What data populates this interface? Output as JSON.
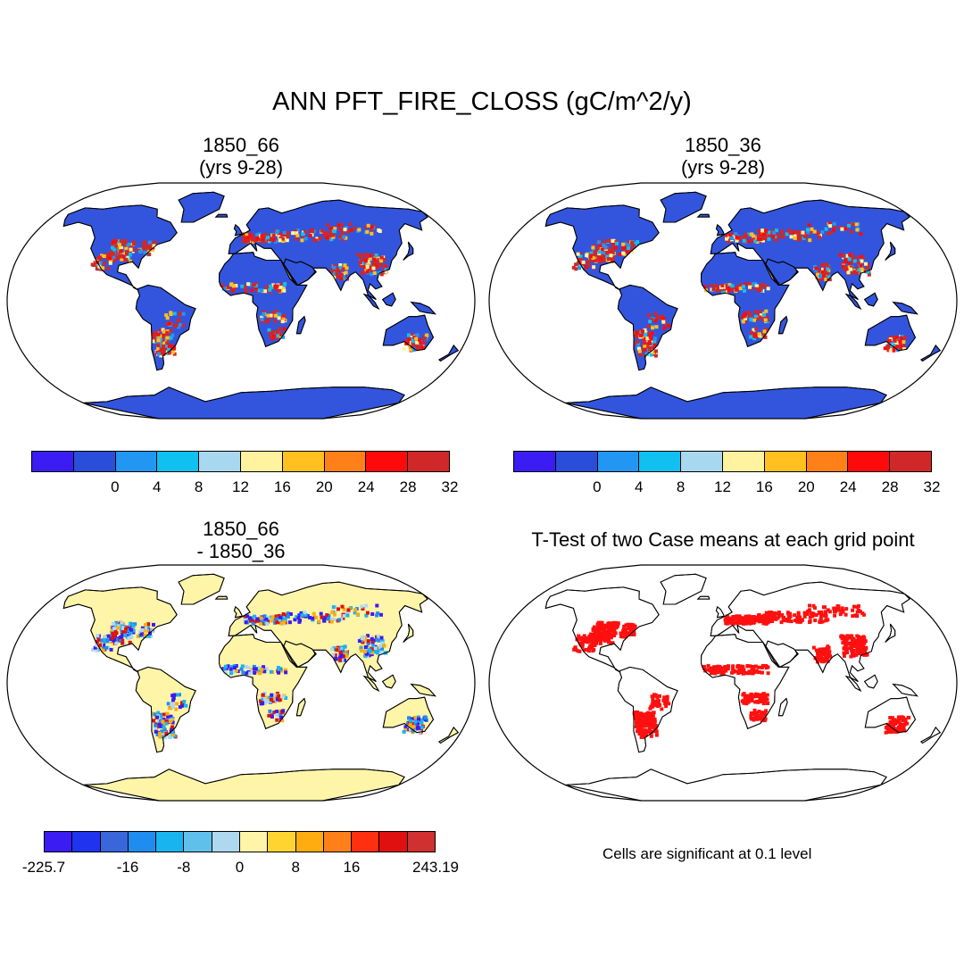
{
  "title": "ANN PFT_FIRE_CLOSS (gC/m^2/y)",
  "panels": {
    "top_left": {
      "line1": "1850_66",
      "line2": "(yrs 9-28)"
    },
    "top_right": {
      "line1": "1850_36",
      "line2": "(yrs 9-28)"
    },
    "bottom_left": {
      "line1": "1850_66",
      "line2": "- 1850_36"
    },
    "bottom_right": {
      "line1": "T-Test of two Case means at each grid point"
    }
  },
  "colorbar_main": {
    "colors": [
      "#3b1cf2",
      "#2a4ed9",
      "#2196f3",
      "#10c0f0",
      "#a8d8f0",
      "#fff3a0",
      "#ffc020",
      "#ff8018",
      "#ff0a0a",
      "#d02828"
    ],
    "labels": [
      "0",
      "4",
      "8",
      "12",
      "16",
      "20",
      "24",
      "28",
      "32"
    ]
  },
  "colorbar_diff": {
    "colors": [
      "#3b1cf2",
      "#2034f0",
      "#3a66dc",
      "#1f8cf0",
      "#18b4f0",
      "#60c0ec",
      "#aed8f0",
      "#fff4a8",
      "#ffd430",
      "#ffac10",
      "#ff8018",
      "#ff3010",
      "#e01010",
      "#d03030"
    ],
    "labels": [
      "-225.7",
      "-16",
      "-8",
      "0",
      "8",
      "16",
      "243.19"
    ]
  },
  "significance_note": "Cells are significant at 0.1 level",
  "colors": {
    "ocean": "#ffffff",
    "land_main": "#3355dd",
    "land_diff": "#fff5a8",
    "significant": "#ff1010"
  }
}
